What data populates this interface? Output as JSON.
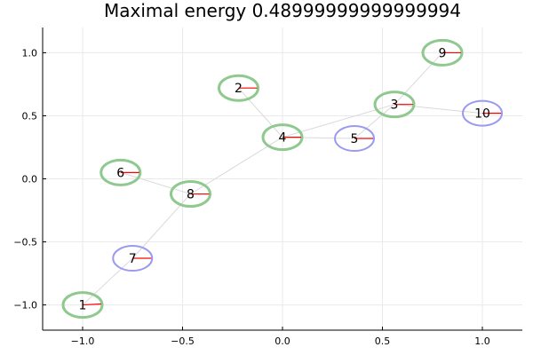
{
  "chart_data": {
    "type": "scatter",
    "title": "Maximal energy 0.48999999999999994",
    "xlabel": "",
    "ylabel": "",
    "xlim": [
      -1.2,
      1.2
    ],
    "ylim": [
      -1.2,
      1.2
    ],
    "grid": true,
    "xticks": [
      -1.0,
      -0.5,
      0.0,
      0.5,
      1.0
    ],
    "yticks": [
      -1.0,
      -0.5,
      0.0,
      0.5,
      1.0
    ],
    "xtick_labels": [
      "−1.0",
      "−0.5",
      "0.0",
      "0.5",
      "1.0"
    ],
    "ytick_labels": [
      "−1.0",
      "−0.5",
      "0.0",
      "0.5",
      "1.0"
    ],
    "colors": {
      "green": "#8fc98f",
      "blue": "#9a9af0",
      "edge": "#d9d9d9",
      "direction": "#ff0000"
    },
    "nodes": [
      {
        "label": "1",
        "x": -1.0,
        "y": -1.0,
        "color": "green",
        "dir_angle": 0.05
      },
      {
        "label": "2",
        "x": -0.22,
        "y": 0.72,
        "color": "green",
        "dir_angle": 0.0
      },
      {
        "label": "3",
        "x": 0.56,
        "y": 0.59,
        "color": "green",
        "dir_angle": 0.0
      },
      {
        "label": "4",
        "x": 0.0,
        "y": 0.33,
        "color": "green",
        "dir_angle": 0.0
      },
      {
        "label": "5",
        "x": 0.36,
        "y": 0.32,
        "color": "blue",
        "dir_angle": 0.0
      },
      {
        "label": "6",
        "x": -0.81,
        "y": 0.05,
        "color": "green",
        "dir_angle": 0.0
      },
      {
        "label": "7",
        "x": -0.75,
        "y": -0.63,
        "color": "blue",
        "dir_angle": 0.0
      },
      {
        "label": "8",
        "x": -0.46,
        "y": -0.12,
        "color": "green",
        "dir_angle": 0.0
      },
      {
        "label": "9",
        "x": 0.8,
        "y": 1.0,
        "color": "green",
        "dir_angle": 0.0
      },
      {
        "label": "10",
        "x": 1.0,
        "y": 0.52,
        "color": "blue",
        "dir_angle": 0.0
      }
    ],
    "edges": [
      [
        "1",
        "7"
      ],
      [
        "7",
        "8"
      ],
      [
        "8",
        "6"
      ],
      [
        "8",
        "4"
      ],
      [
        "4",
        "2"
      ],
      [
        "4",
        "5"
      ],
      [
        "5",
        "3"
      ],
      [
        "4",
        "3"
      ],
      [
        "3",
        "9"
      ],
      [
        "3",
        "10"
      ]
    ]
  }
}
